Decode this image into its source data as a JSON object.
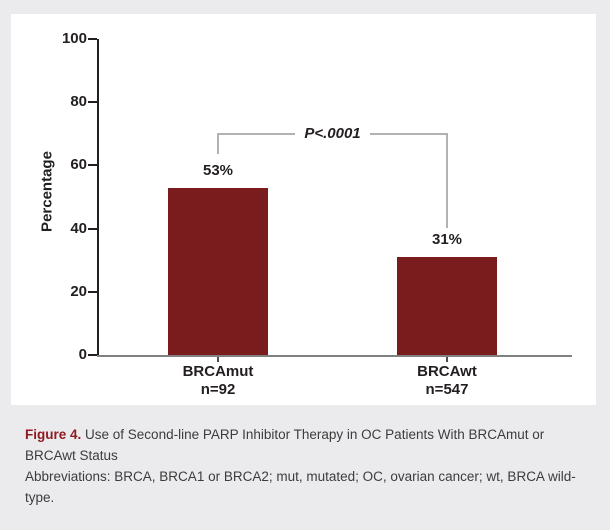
{
  "caption": {
    "figure_label": "Figure 4.",
    "title": "Use of Second-line PARP Inhibitor Therapy in OC Patients With BRCAmut or BRCAwt Status",
    "abbreviations": "Abbreviations: BRCA, BRCA1 or BRCA2; mut, mutated; OC, ovarian cancer; wt, BRCA wild-type."
  },
  "chart_data": {
    "type": "bar",
    "title": "Use of Second-line PARP Inhibitor Therapy in OC Patients With BRCAmut or BRCAwt Status",
    "categories": [
      "BRCAmut",
      "BRCAwt"
    ],
    "category_sublabels": [
      "n=92",
      "n=547"
    ],
    "values": [
      53,
      31
    ],
    "value_labels": [
      "53%",
      "31%"
    ],
    "xlabel": "",
    "ylabel": "Percentage",
    "ylim": [
      0,
      100
    ],
    "yticks": [
      0,
      20,
      40,
      60,
      80,
      100
    ],
    "grid": false,
    "legend": false,
    "annotations": {
      "significance": "P<.0001"
    },
    "colors": {
      "bar": "#7a1b1e",
      "axis": "#231f20",
      "baseline": "#808080",
      "bracket": "#b2b2b2",
      "figure_label": "#8e1b22",
      "page_background": "#ebebed",
      "panel_background": "#ffffff"
    }
  }
}
